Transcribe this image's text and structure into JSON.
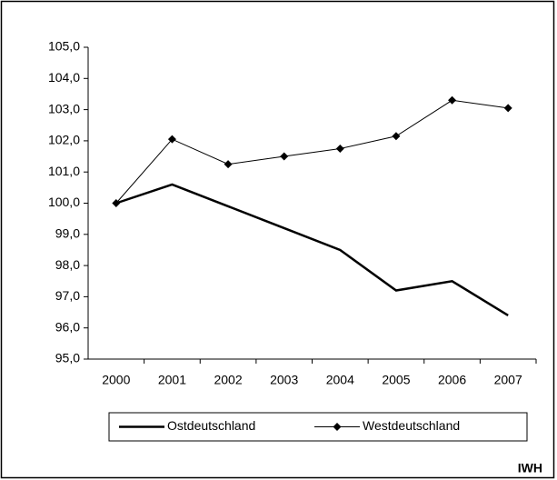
{
  "chart_data": {
    "type": "line",
    "categories": [
      "2000",
      "2001",
      "2002",
      "2003",
      "2004",
      "2005",
      "2006",
      "2007"
    ],
    "series": [
      {
        "name": "Ostdeutschland",
        "color": "#000000",
        "marker": "none",
        "values": [
          100.0,
          100.6,
          99.9,
          99.2,
          98.5,
          97.2,
          97.5,
          96.4
        ]
      },
      {
        "name": "Westdeutschland",
        "color": "#000000",
        "marker": "diamond",
        "values": [
          100.0,
          102.05,
          101.25,
          101.5,
          101.75,
          102.15,
          103.3,
          103.05
        ]
      }
    ],
    "ylim": [
      95,
      105
    ],
    "yticks": [
      {
        "value": 95,
        "label": "95,0"
      },
      {
        "value": 96,
        "label": "96,0"
      },
      {
        "value": 97,
        "label": "97,0"
      },
      {
        "value": 98,
        "label": "98,0"
      },
      {
        "value": 99,
        "label": "99,0"
      },
      {
        "value": 100,
        "label": "100,0"
      },
      {
        "value": 101,
        "label": "101,0"
      },
      {
        "value": 102,
        "label": "102,0"
      },
      {
        "value": 103,
        "label": "103,0"
      },
      {
        "value": 104,
        "label": "104,0"
      },
      {
        "value": 105,
        "label": "105,0"
      }
    ],
    "grid": false,
    "legend": "bottom",
    "source": "IWH"
  }
}
